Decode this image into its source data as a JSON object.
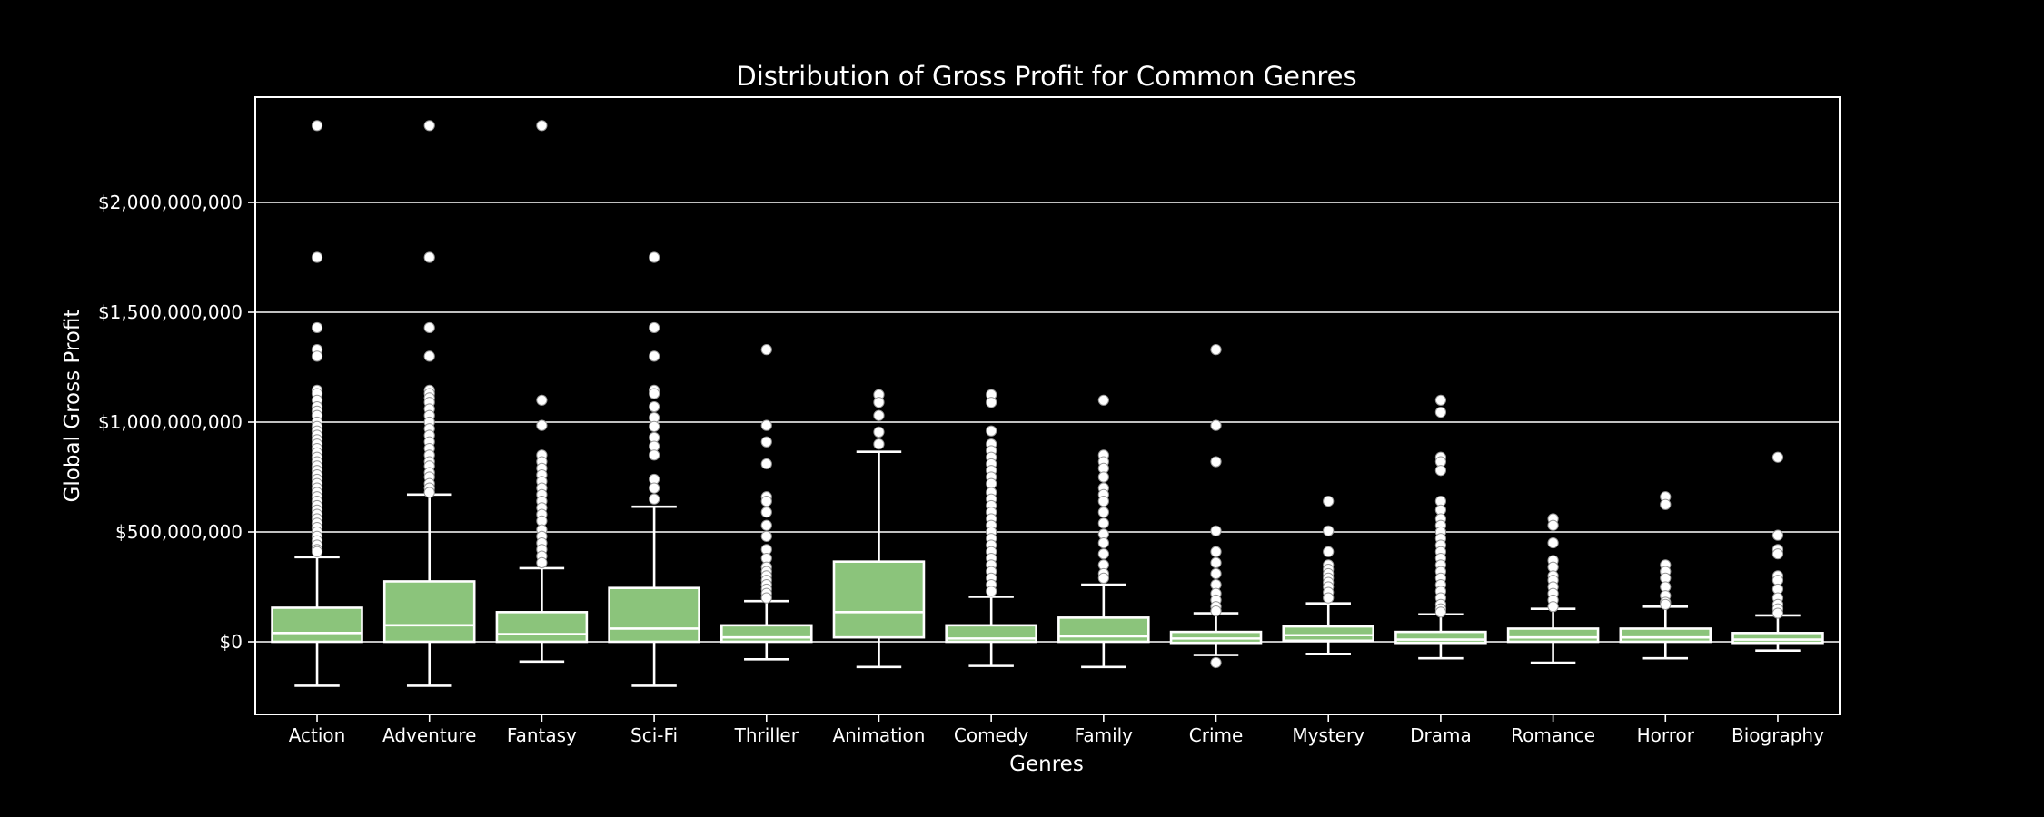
{
  "chart_data": {
    "type": "boxplot",
    "title": "Distribution of Gross Profit for Common Genres",
    "xlabel": "Genres",
    "ylabel": "Global Gross Profit",
    "ylim": [
      -330000000,
      2450000000
    ],
    "yticks": [
      0,
      500000000,
      1000000000,
      1500000000,
      2000000000
    ],
    "ytick_labels": [
      "$0",
      "$500,000,000",
      "$1,000,000,000",
      "$1,500,000,000",
      "$2,000,000,000"
    ],
    "grid": "horizontal",
    "colors": {
      "box": "#8bc47b",
      "line": "#ffffff",
      "background": "#000000"
    },
    "categories": [
      "Action",
      "Adventure",
      "Fantasy",
      "Sci-Fi",
      "Thriller",
      "Animation",
      "Comedy",
      "Family",
      "Crime",
      "Mystery",
      "Drama",
      "Romance",
      "Horror",
      "Biography"
    ],
    "boxes": [
      {
        "category": "Action",
        "whisker_low": -200000000,
        "q1": 0,
        "median": 40000000,
        "q3": 155000000,
        "whisker_high": 385000000,
        "outliers": [
          2350000000,
          1750000000,
          1430000000,
          1330000000,
          1300000000,
          1145000000,
          1130000000,
          1100000000,
          1070000000,
          1050000000,
          1030000000,
          1000000000,
          980000000,
          960000000,
          940000000,
          920000000,
          900000000,
          880000000,
          860000000,
          840000000,
          820000000,
          800000000,
          780000000,
          760000000,
          740000000,
          720000000,
          700000000,
          680000000,
          660000000,
          640000000,
          620000000,
          600000000,
          580000000,
          560000000,
          540000000,
          520000000,
          500000000,
          480000000,
          460000000,
          440000000,
          420000000,
          410000000
        ]
      },
      {
        "category": "Adventure",
        "whisker_low": -200000000,
        "q1": 0,
        "median": 75000000,
        "q3": 275000000,
        "whisker_high": 670000000,
        "outliers": [
          2350000000,
          1750000000,
          1430000000,
          1300000000,
          1145000000,
          1130000000,
          1110000000,
          1090000000,
          1060000000,
          1030000000,
          1000000000,
          970000000,
          940000000,
          910000000,
          880000000,
          850000000,
          820000000,
          800000000,
          770000000,
          750000000,
          720000000,
          700000000,
          680000000
        ]
      },
      {
        "category": "Fantasy",
        "whisker_low": -90000000,
        "q1": 0,
        "median": 35000000,
        "q3": 135000000,
        "whisker_high": 335000000,
        "outliers": [
          2350000000,
          1100000000,
          985000000,
          850000000,
          820000000,
          790000000,
          760000000,
          730000000,
          700000000,
          670000000,
          640000000,
          610000000,
          580000000,
          550000000,
          510000000,
          480000000,
          450000000,
          420000000,
          390000000,
          360000000
        ]
      },
      {
        "category": "Sci-Fi",
        "whisker_low": -200000000,
        "q1": 0,
        "median": 60000000,
        "q3": 245000000,
        "whisker_high": 615000000,
        "outliers": [
          1750000000,
          1430000000,
          1300000000,
          1145000000,
          1130000000,
          1070000000,
          1020000000,
          980000000,
          930000000,
          890000000,
          850000000,
          740000000,
          700000000,
          650000000
        ]
      },
      {
        "category": "Thriller",
        "whisker_low": -80000000,
        "q1": 0,
        "median": 20000000,
        "q3": 75000000,
        "whisker_high": 185000000,
        "outliers": [
          1330000000,
          985000000,
          910000000,
          810000000,
          660000000,
          640000000,
          590000000,
          530000000,
          480000000,
          420000000,
          380000000,
          340000000,
          320000000,
          300000000,
          280000000,
          260000000,
          240000000,
          220000000,
          200000000
        ]
      },
      {
        "category": "Animation",
        "whisker_low": -115000000,
        "q1": 20000000,
        "median": 135000000,
        "q3": 365000000,
        "whisker_high": 865000000,
        "outliers": [
          1125000000,
          1090000000,
          1030000000,
          955000000,
          900000000
        ]
      },
      {
        "category": "Comedy",
        "whisker_low": -110000000,
        "q1": 0,
        "median": 15000000,
        "q3": 75000000,
        "whisker_high": 205000000,
        "outliers": [
          1125000000,
          1090000000,
          960000000,
          900000000,
          870000000,
          840000000,
          810000000,
          780000000,
          750000000,
          720000000,
          680000000,
          650000000,
          620000000,
          590000000,
          560000000,
          530000000,
          500000000,
          470000000,
          440000000,
          410000000,
          380000000,
          350000000,
          320000000,
          290000000,
          260000000,
          230000000
        ]
      },
      {
        "category": "Family",
        "whisker_low": -115000000,
        "q1": 0,
        "median": 25000000,
        "q3": 110000000,
        "whisker_high": 260000000,
        "outliers": [
          1100000000,
          850000000,
          820000000,
          790000000,
          750000000,
          700000000,
          670000000,
          640000000,
          590000000,
          540000000,
          490000000,
          450000000,
          400000000,
          350000000,
          310000000,
          290000000
        ]
      },
      {
        "category": "Crime",
        "whisker_low": -60000000,
        "q1": -5000000,
        "median": 15000000,
        "q3": 45000000,
        "whisker_high": 130000000,
        "outliers": [
          1330000000,
          985000000,
          820000000,
          505000000,
          410000000,
          360000000,
          310000000,
          260000000,
          220000000,
          190000000,
          160000000,
          140000000,
          -95000000
        ]
      },
      {
        "category": "Mystery",
        "whisker_low": -55000000,
        "q1": 5000000,
        "median": 30000000,
        "q3": 70000000,
        "whisker_high": 175000000,
        "outliers": [
          640000000,
          505000000,
          410000000,
          350000000,
          330000000,
          310000000,
          290000000,
          270000000,
          250000000,
          225000000,
          200000000
        ]
      },
      {
        "category": "Drama",
        "whisker_low": -75000000,
        "q1": -5000000,
        "median": 10000000,
        "q3": 45000000,
        "whisker_high": 125000000,
        "outliers": [
          1100000000,
          1045000000,
          840000000,
          820000000,
          780000000,
          640000000,
          600000000,
          560000000,
          530000000,
          500000000,
          470000000,
          440000000,
          410000000,
          380000000,
          350000000,
          320000000,
          290000000,
          260000000,
          230000000,
          200000000,
          170000000,
          150000000,
          135000000
        ]
      },
      {
        "category": "Romance",
        "whisker_low": -95000000,
        "q1": 0,
        "median": 20000000,
        "q3": 60000000,
        "whisker_high": 150000000,
        "outliers": [
          560000000,
          530000000,
          450000000,
          370000000,
          340000000,
          300000000,
          280000000,
          250000000,
          220000000,
          190000000,
          160000000
        ]
      },
      {
        "category": "Horror",
        "whisker_low": -75000000,
        "q1": 0,
        "median": 20000000,
        "q3": 60000000,
        "whisker_high": 160000000,
        "outliers": [
          660000000,
          625000000,
          350000000,
          320000000,
          290000000,
          250000000,
          210000000,
          180000000,
          170000000
        ]
      },
      {
        "category": "Biography",
        "whisker_low": -40000000,
        "q1": -5000000,
        "median": 10000000,
        "q3": 40000000,
        "whisker_high": 120000000,
        "outliers": [
          840000000,
          485000000,
          420000000,
          400000000,
          300000000,
          280000000,
          240000000,
          200000000,
          170000000,
          150000000,
          130000000
        ]
      }
    ]
  }
}
